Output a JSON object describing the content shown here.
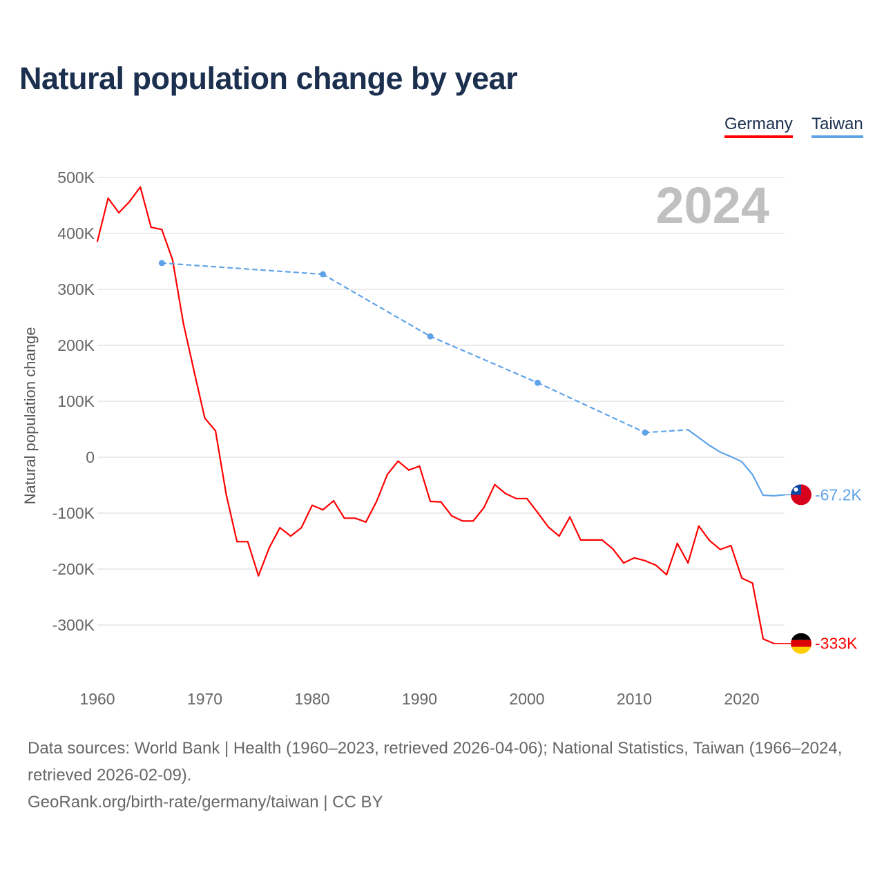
{
  "title": "Natural population change by year",
  "legend": {
    "germany": "Germany",
    "taiwan": "Taiwan"
  },
  "footer": {
    "sources": "Data sources: World Bank | Health (1960–2023, retrieved 2026-04-06); National Statistics, Taiwan (1966–2024, retrieved 2026-02-09).",
    "credit": "GeoRank.org/birth-rate/germany/taiwan | CC BY"
  },
  "chart_data": {
    "type": "line",
    "title": "Natural population change by year",
    "xlabel": "",
    "ylabel": "Natural population change",
    "year_label": "2024",
    "xlim": [
      1960,
      2024
    ],
    "ylim": [
      -350000,
      500000
    ],
    "xticks": [
      1960,
      1970,
      1980,
      1990,
      2000,
      2010,
      2020
    ],
    "yticks": [
      {
        "v": 500000,
        "l": "500K"
      },
      {
        "v": 400000,
        "l": "400K"
      },
      {
        "v": 300000,
        "l": "300K"
      },
      {
        "v": 200000,
        "l": "200K"
      },
      {
        "v": 100000,
        "l": "100K"
      },
      {
        "v": 0,
        "l": "0"
      },
      {
        "v": -100000,
        "l": "-100K"
      },
      {
        "v": -200000,
        "l": "-200K"
      },
      {
        "v": -300000,
        "l": "-300K"
      }
    ],
    "grid": true,
    "legend_position": "top-right",
    "series": [
      {
        "name": "Germany",
        "color": "#ff0000",
        "end_label": "-333K",
        "flag": "germany-flag",
        "x": [
          1960,
          1961,
          1962,
          1963,
          1964,
          1965,
          1966,
          1967,
          1968,
          1969,
          1970,
          1971,
          1972,
          1973,
          1974,
          1975,
          1976,
          1977,
          1978,
          1979,
          1980,
          1981,
          1982,
          1983,
          1984,
          1985,
          1986,
          1987,
          1988,
          1989,
          1990,
          1991,
          1992,
          1993,
          1994,
          1995,
          1996,
          1997,
          1998,
          1999,
          2000,
          2001,
          2002,
          2003,
          2004,
          2005,
          2006,
          2007,
          2008,
          2009,
          2010,
          2011,
          2012,
          2013,
          2014,
          2015,
          2016,
          2017,
          2018,
          2019,
          2020,
          2021,
          2022,
          2023
        ],
        "y": [
          386000,
          463000,
          437000,
          457000,
          483000,
          411000,
          407000,
          353000,
          240000,
          154000,
          70000,
          47000,
          -67000,
          -151000,
          -151000,
          -212000,
          -162000,
          -126000,
          -141000,
          -126000,
          -86000,
          -94000,
          -78000,
          -109000,
          -109000,
          -116000,
          -79000,
          -31000,
          -7000,
          -23000,
          -16000,
          -79000,
          -80000,
          -105000,
          -114000,
          -114000,
          -90000,
          -49000,
          -65000,
          -74000,
          -74000,
          -99000,
          -125000,
          -141000,
          -107000,
          -148000,
          -148000,
          -148000,
          -164000,
          -189000,
          -180000,
          -185000,
          -193000,
          -210000,
          -154000,
          -189000,
          -123000,
          -149000,
          -165000,
          -158000,
          -216000,
          -225000,
          -325000,
          -333000
        ]
      },
      {
        "name": "Taiwan",
        "color": "#5ea3e8",
        "end_label": "-67.2K",
        "flag": "taiwan-flag",
        "x": [
          1966,
          1981,
          1991,
          2001,
          2011,
          2015,
          2016,
          2017,
          2018,
          2019,
          2020,
          2021,
          2022,
          2023,
          2024
        ],
        "y": [
          347000,
          327000,
          216000,
          133000,
          44000,
          49000,
          35000,
          21000,
          9000,
          1000,
          -8000,
          -31000,
          -68000,
          -69000,
          -67200
        ]
      }
    ]
  }
}
